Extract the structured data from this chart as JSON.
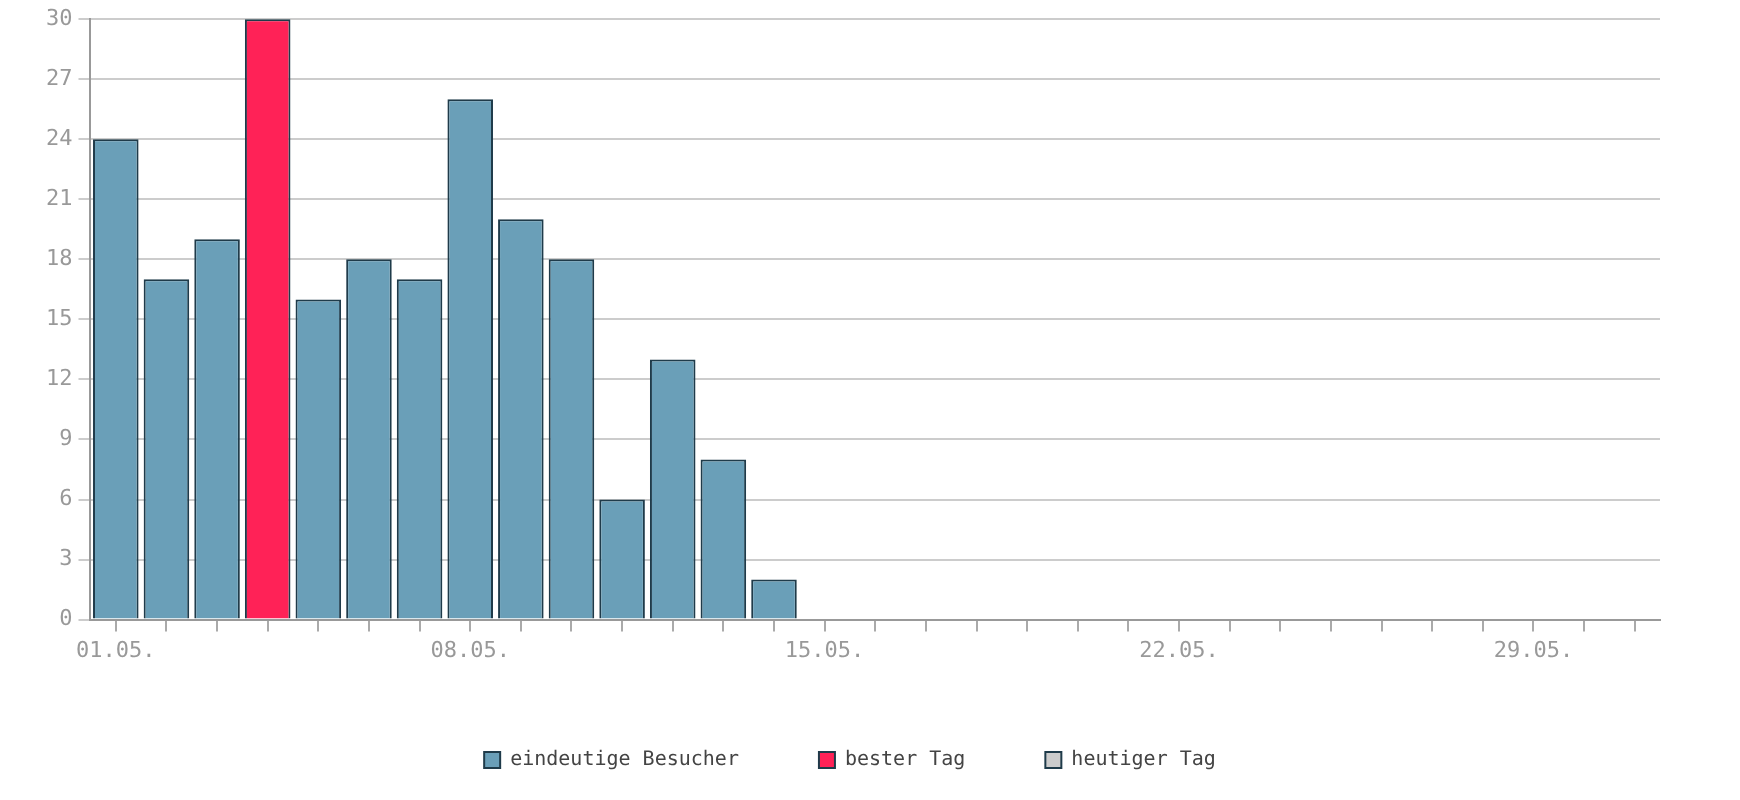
{
  "chart_data": {
    "type": "bar",
    "stacked": true,
    "categories": [
      "01.05.",
      null,
      null,
      null,
      null,
      null,
      null,
      "08.05.",
      null,
      null,
      null,
      null,
      null,
      null,
      "15.05.",
      null,
      null,
      null,
      null,
      null,
      null,
      "22.05.",
      null,
      null,
      null,
      null,
      null,
      null,
      "29.05.",
      null,
      null
    ],
    "series": [
      {
        "name": "eindeutige Besucher",
        "color": "#6a9fb8",
        "values": [
          24,
          17,
          19,
          null,
          16,
          18,
          17,
          26,
          20,
          18,
          6,
          13,
          8,
          2,
          null,
          null,
          null,
          null,
          null,
          null,
          null,
          null,
          null,
          null,
          null,
          null,
          null,
          null,
          null,
          null,
          null
        ]
      },
      {
        "name": "bester Tag",
        "color": "#ff2257",
        "values": [
          null,
          null,
          null,
          30,
          null,
          null,
          null,
          null,
          null,
          null,
          null,
          null,
          null,
          null,
          null,
          null,
          null,
          null,
          null,
          null,
          null,
          null,
          null,
          null,
          null,
          null,
          null,
          null,
          null,
          null,
          null
        ]
      },
      {
        "name": "heutiger Tag",
        "color": "#cccccc",
        "values": [
          null,
          null,
          null,
          null,
          null,
          null,
          null,
          null,
          null,
          null,
          null,
          null,
          null,
          null,
          null,
          null,
          null,
          null,
          null,
          null,
          null,
          null,
          null,
          null,
          null,
          null,
          null,
          null,
          null,
          null,
          null
        ]
      }
    ],
    "ylim": [
      0,
      30
    ],
    "yticks": [
      0,
      3,
      6,
      9,
      12,
      15,
      18,
      21,
      24,
      27,
      30
    ],
    "grid": "y",
    "legend": "bottom"
  }
}
